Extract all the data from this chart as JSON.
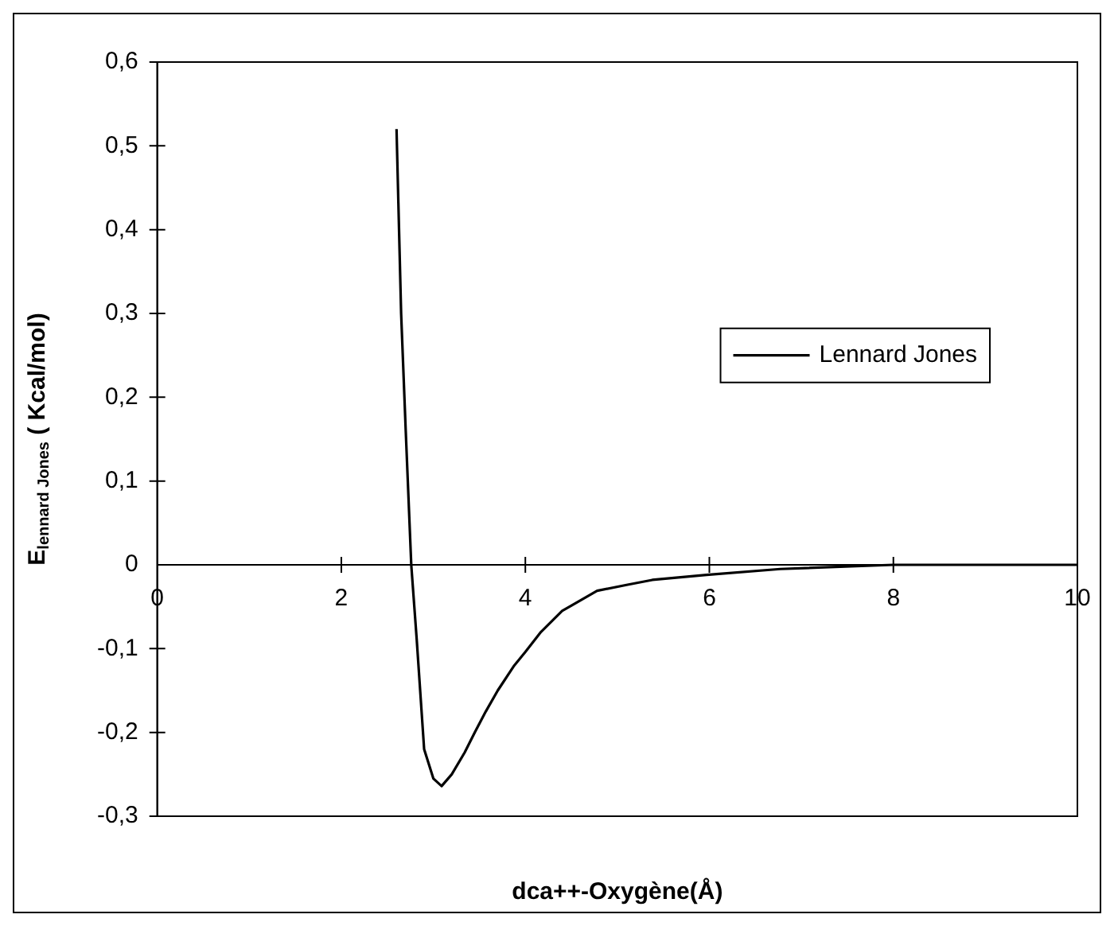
{
  "chart_data": {
    "type": "line",
    "xlabel": "dca++-Oxygène(Å)",
    "ylabel": "E$_{lennard Jones}$ ( Kcal/mol)",
    "x": [
      2.6,
      2.65,
      2.7,
      2.76,
      2.82,
      2.9,
      3.0,
      3.09,
      3.2,
      3.34,
      3.45,
      3.57,
      3.7,
      3.88,
      4.0,
      4.17,
      4.4,
      4.78,
      5.1,
      5.38,
      5.97,
      6.77,
      8,
      10
    ],
    "series": [
      {
        "name": "Lennard Jones",
        "color": "#000000",
        "values": [
          0.52,
          0.3,
          0.16,
          0,
          -0.09,
          -0.22,
          -0.255,
          -0.264,
          -0.25,
          -0.224,
          -0.2,
          -0.175,
          -0.15,
          -0.12,
          -0.104,
          -0.08,
          -0.055,
          -0.031,
          -0.024,
          -0.018,
          -0.012,
          -0.005,
          0,
          0
        ]
      }
    ],
    "xlim": [
      0,
      10
    ],
    "xticks": [
      0,
      2,
      4,
      6,
      8,
      10
    ],
    "ylim": [
      -0.3,
      0.6
    ],
    "yticks": [
      {
        "value": -0.3,
        "label": "-0,3"
      },
      {
        "value": -0.2,
        "label": "-0,2"
      },
      {
        "value": -0.1,
        "label": "-0,1"
      },
      {
        "value": 0,
        "label": "0"
      },
      {
        "value": 0.1,
        "label": "0,1"
      },
      {
        "value": 0.2,
        "label": "0,2"
      },
      {
        "value": 0.3,
        "label": "0,3"
      },
      {
        "value": 0.4,
        "label": "0,4"
      },
      {
        "value": 0.5,
        "label": "0,5"
      },
      {
        "value": 0.6,
        "label": "0,6"
      }
    ],
    "grid": false,
    "legend": "right",
    "marker": "none",
    "line_style": "solid"
  }
}
